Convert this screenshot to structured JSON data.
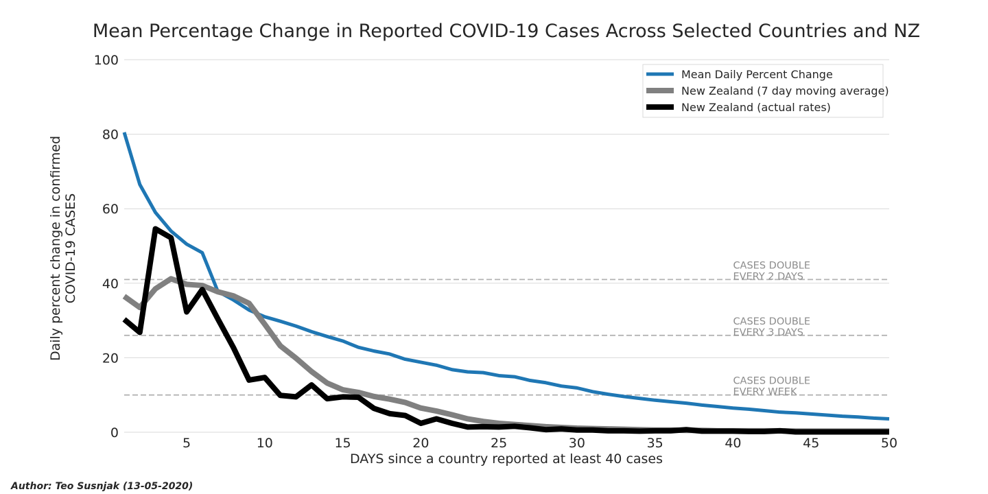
{
  "chart_data": {
    "type": "line",
    "title": "Mean Percentage Change in Reported COVID-19 Cases Across Selected Countries and NZ",
    "xlabel": "DAYS since a country reported at least 40 cases",
    "ylabel": [
      "Daily percent change in confirmed",
      "COVID-19 CASES"
    ],
    "xlim": [
      1,
      50
    ],
    "ylim": [
      0,
      100
    ],
    "xticks": [
      5,
      10,
      15,
      20,
      25,
      30,
      35,
      40,
      45,
      50
    ],
    "yticks": [
      0,
      20,
      40,
      60,
      80,
      100
    ],
    "grid": true,
    "legend_position": "top-right",
    "x": [
      1,
      2,
      3,
      4,
      5,
      6,
      7,
      8,
      9,
      10,
      11,
      12,
      13,
      14,
      15,
      16,
      17,
      18,
      19,
      20,
      21,
      22,
      23,
      24,
      25,
      26,
      27,
      28,
      29,
      30,
      31,
      32,
      33,
      34,
      35,
      36,
      37,
      38,
      39,
      40,
      41,
      42,
      43,
      44,
      45,
      46,
      47,
      48,
      49,
      50
    ],
    "series": [
      {
        "name": "Mean Daily Percent Change",
        "color": "#1f77b4",
        "values": [
          80.5,
          66.5,
          59.0,
          54.0,
          50.5,
          48.2,
          37.8,
          35.5,
          32.8,
          31.0,
          29.8,
          28.5,
          27.0,
          25.7,
          24.5,
          22.8,
          21.8,
          21.0,
          19.6,
          18.8,
          18.0,
          16.8,
          16.2,
          16.0,
          15.2,
          14.9,
          13.9,
          13.3,
          12.4,
          11.9,
          10.9,
          10.2,
          9.6,
          9.1,
          8.6,
          8.2,
          7.8,
          7.3,
          6.9,
          6.5,
          6.2,
          5.8,
          5.4,
          5.2,
          4.9,
          4.6,
          4.3,
          4.1,
          3.8,
          3.6
        ]
      },
      {
        "name": "New Zealand (7 day moving average)",
        "color": "#808080",
        "values": [
          36.5,
          33.5,
          38.5,
          41.2,
          39.7,
          39.4,
          37.7,
          36.6,
          34.6,
          29.0,
          23.2,
          19.9,
          16.3,
          13.2,
          11.4,
          10.7,
          9.6,
          8.9,
          8.0,
          6.5,
          5.7,
          4.7,
          3.6,
          2.9,
          2.4,
          2.1,
          1.8,
          1.5,
          1.3,
          1.1,
          1.0,
          0.9,
          0.8,
          0.7,
          0.6,
          0.6,
          0.5,
          0.5,
          0.4,
          0.4,
          0.4,
          0.4,
          0.4,
          0.3,
          0.3,
          0.3,
          0.3,
          0.3,
          0.3,
          0.3
        ]
      },
      {
        "name": "New Zealand (actual rates)",
        "color": "#000000",
        "values": [
          30.3,
          26.8,
          54.6,
          52.2,
          32.3,
          38.3,
          30.4,
          22.7,
          14.0,
          14.7,
          9.9,
          9.5,
          12.7,
          9.0,
          9.5,
          9.4,
          6.4,
          5.0,
          4.5,
          2.4,
          3.6,
          2.4,
          1.4,
          1.5,
          1.4,
          1.6,
          1.2,
          0.7,
          0.9,
          0.6,
          0.6,
          0.4,
          0.4,
          0.3,
          0.4,
          0.4,
          0.7,
          0.3,
          0.3,
          0.3,
          0.2,
          0.2,
          0.4,
          0.1,
          0.1,
          0.1,
          0.1,
          0.1,
          0.1,
          0.1
        ]
      }
    ],
    "reference_lines": [
      {
        "y": 41,
        "label": [
          "CASES DOUBLE",
          "EVERY 2 DAYS"
        ]
      },
      {
        "y": 26,
        "label": [
          "CASES DOUBLE",
          "EVERY 3 DAYS"
        ]
      },
      {
        "y": 10,
        "label": [
          "CASES DOUBLE",
          "EVERY WEEK"
        ]
      }
    ],
    "author": "Author: Teo Susnjak (13-05-2020)"
  }
}
